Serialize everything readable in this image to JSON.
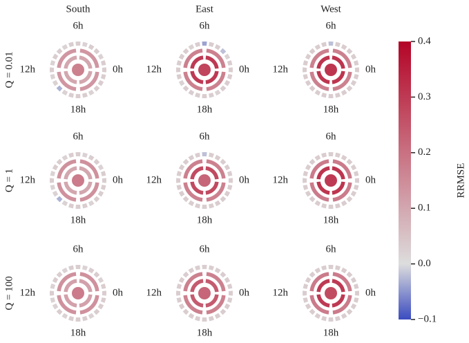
{
  "chart_data": {
    "type": "polar-ring-grid",
    "columns": [
      "South",
      "East",
      "West"
    ],
    "rows": [
      "Q = 0.01",
      "Q = 1",
      "Q = 100"
    ],
    "hour_labels": {
      "top": "6h",
      "left": "12h",
      "bottom": "18h",
      "right": "0h"
    },
    "colorbar": {
      "label": "RRMSE",
      "clim": [
        -0.1,
        0.4
      ],
      "center": 0,
      "colors": [
        "#3b4cc0",
        "#dddddd",
        "#b40426"
      ],
      "ticks": [
        0.4,
        0.3,
        0.2,
        0.1,
        {
          "value": 0,
          "label": "0.0"
        },
        {
          "value": -0.1,
          "label": "−0.1"
        }
      ]
    },
    "panels": [
      {
        "center": 0.17,
        "ring1": 0.1,
        "ring2": 0.13,
        "dashes": [
          0.03,
          0.03,
          0.02,
          0.03,
          0.03,
          0.02,
          0.03,
          0.03,
          0.02,
          0.03,
          0.03,
          0.02,
          0.03,
          0.02,
          0.02,
          -0.03,
          0.02,
          0.03,
          0.03,
          0.03,
          0.02,
          0.03,
          0.03,
          0.03
        ]
      },
      {
        "center": 0.28,
        "ring1": 0.3,
        "ring2": 0.17,
        "dashes": [
          0.03,
          0.03,
          0.02,
          -0.02,
          0.03,
          0.03,
          -0.04,
          0.03,
          0.02,
          0.03,
          0.03,
          0.03,
          0.03,
          0.03,
          0.02,
          0.03,
          0.03,
          0.03,
          0.03,
          0.03,
          0.02,
          0.03,
          0.03,
          0.03
        ]
      },
      {
        "center": 0.31,
        "ring1": 0.31,
        "ring2": 0.17,
        "dashes": [
          0.03,
          0.03,
          0.03,
          0.03,
          0.03,
          0.03,
          -0.02,
          0.03,
          0.03,
          0.03,
          0.03,
          0.03,
          0.03,
          0.03,
          0.03,
          0.03,
          0.03,
          0.03,
          0.03,
          0.03,
          0.03,
          0.03,
          0.03,
          0.03
        ]
      },
      {
        "center": 0.18,
        "ring1": 0.1,
        "ring2": 0.14,
        "dashes": [
          0.03,
          0.03,
          0.02,
          0.03,
          0.03,
          0.02,
          0.03,
          0.03,
          0.02,
          0.03,
          0.03,
          0.02,
          0.03,
          0.02,
          0.02,
          -0.03,
          0.02,
          0.03,
          0.03,
          0.03,
          0.02,
          0.03,
          0.03,
          0.03
        ]
      },
      {
        "center": 0.22,
        "ring1": 0.27,
        "ring2": 0.17,
        "dashes": [
          0.03,
          0.03,
          0.03,
          0.03,
          0.03,
          0.03,
          -0.02,
          0.03,
          0.03,
          0.03,
          0.03,
          0.03,
          0.03,
          0.03,
          0.03,
          0.03,
          0.03,
          0.03,
          0.03,
          0.03,
          0.03,
          0.03,
          0.03,
          0.03
        ]
      },
      {
        "center": 0.3,
        "ring1": 0.31,
        "ring2": 0.18,
        "dashes": [
          0.03,
          0.03,
          0.03,
          0.03,
          0.03,
          0.03,
          0.03,
          0.03,
          0.03,
          0.03,
          0.03,
          0.03,
          0.03,
          0.03,
          0.03,
          0.03,
          0.03,
          0.03,
          0.03,
          0.03,
          0.03,
          0.03,
          0.03,
          0.03
        ]
      },
      {
        "center": 0.18,
        "ring1": 0.11,
        "ring2": 0.14,
        "dashes": [
          0.03,
          0.03,
          0.02,
          0.03,
          0.03,
          0.02,
          0.03,
          0.03,
          0.02,
          0.03,
          0.03,
          0.02,
          0.03,
          0.02,
          0.02,
          0.03,
          0.02,
          0.03,
          0.03,
          0.03,
          0.02,
          0.03,
          0.03,
          0.03
        ]
      },
      {
        "center": 0.22,
        "ring1": 0.24,
        "ring2": 0.17,
        "dashes": [
          0.03,
          0.03,
          0.03,
          0.03,
          0.03,
          0.03,
          0.03,
          0.03,
          0.03,
          0.03,
          0.03,
          0.03,
          0.03,
          0.03,
          0.03,
          0.03,
          0.03,
          0.03,
          0.03,
          0.03,
          0.03,
          0.03,
          0.03,
          0.03
        ]
      },
      {
        "center": 0.27,
        "ring1": 0.3,
        "ring2": 0.18,
        "dashes": [
          0.03,
          0.03,
          0.03,
          0.03,
          0.03,
          0.03,
          0.03,
          0.03,
          0.03,
          0.03,
          0.03,
          0.03,
          0.03,
          0.03,
          0.03,
          0.03,
          0.03,
          0.03,
          0.03,
          0.03,
          0.03,
          0.03,
          0.03,
          0.03
        ]
      }
    ]
  }
}
